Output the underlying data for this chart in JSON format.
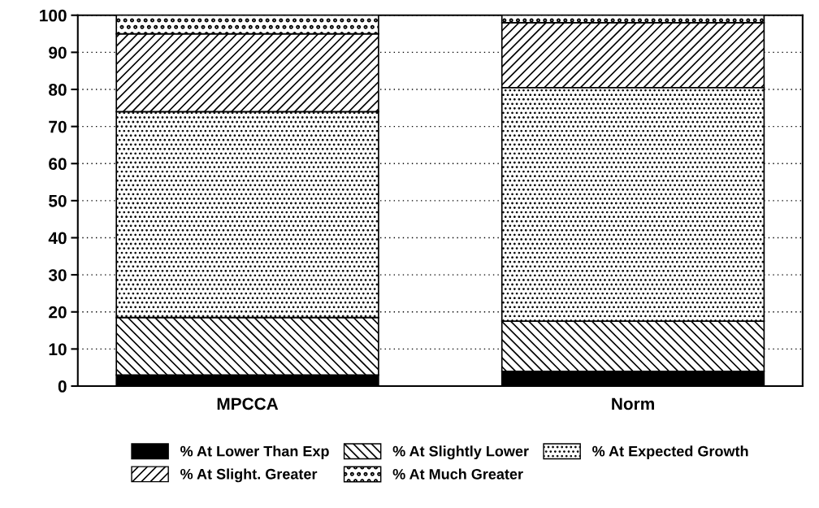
{
  "chart_data": {
    "type": "bar",
    "stacked": true,
    "categories": [
      "MPCCA",
      "Norm"
    ],
    "series": [
      {
        "name": "% At Lower Than Exp",
        "color": "#000000",
        "values": [
          3,
          4
        ]
      },
      {
        "name": "% At Slightly Lower",
        "color": "#000000",
        "values": [
          15.5,
          13.5
        ]
      },
      {
        "name": "% At Expected Growth",
        "color": "#000000",
        "values": [
          55.5,
          63
        ]
      },
      {
        "name": "% At Slight. Greater",
        "color": "#000000",
        "values": [
          21,
          17.5
        ]
      },
      {
        "name": "% At Much Greater",
        "color": "#000000",
        "values": [
          5,
          2
        ]
      }
    ],
    "ylim": [
      0,
      100
    ],
    "yticks": [
      0,
      10,
      20,
      30,
      40,
      50,
      60,
      70,
      80,
      90,
      100
    ],
    "grid": "y",
    "legend": "bottom"
  }
}
